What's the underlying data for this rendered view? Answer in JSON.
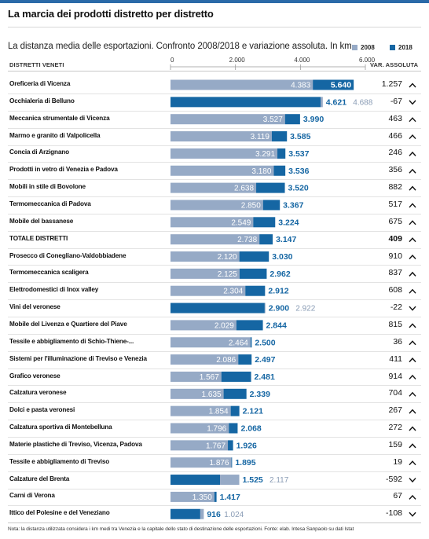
{
  "title": "La marcia dei prodotti distretto per distretto",
  "subtitle": "La distanza media delle esportazioni. Confronto 2008/2018 e variazione assoluta. In km",
  "legend": {
    "y2008": "2008",
    "y2018": "2018"
  },
  "col_label_left": "DISTRETTI VENETI",
  "col_label_right": "VAR. ASSOLUTA",
  "footnote": "Nota: la distanza utilizzata considera i km medi tra Venezia e la capitale dello stato di destinazione delle esportazioni. Fonte: elab. Intesa Sanpaolo su dati Istat",
  "colors": {
    "c2008": "#96aac6",
    "c2018": "#1566a3",
    "text2018": "#1566a3",
    "text2008": "#8a9cb5"
  },
  "chart_data": {
    "type": "bar",
    "xlim": [
      0,
      6000
    ],
    "xticks": [
      "0",
      "2.000",
      "4.000",
      "6.000"
    ],
    "xtick_values": [
      0,
      2000,
      4000,
      6000
    ],
    "categories": [
      "Oreficeria di Vicenza",
      "Occhialeria di Belluno",
      "Meccanica strumentale di Vicenza",
      "Marmo e granito di Valpolicella",
      "Concia di Arzignano",
      "Prodotti in vetro di Venezia e Padova",
      "Mobili in stile di Bovolone",
      "Termomeccanica di Padova",
      "Mobile del bassanese",
      "TOTALE DISTRETTI",
      "Prosecco di Conegliano-Valdobbiadene",
      "Termomeccanica scaligera",
      "Elettrodomestici di Inox valley",
      "Vini del veronese",
      "Mobile del Livenza e Quartiere del Piave",
      "Tessile e abbigliamento di Schio-Thiene-...",
      "Sistemi per l'illuminazione di Treviso e Venezia",
      "Grafico veronese",
      "Calzatura veronese",
      "Dolci e pasta veronesi",
      "Calzatura sportiva di Montebelluna",
      "Materie plastiche di Treviso, Vicenza, Padova",
      "Tessile e abbigliamento di Treviso",
      "Calzature del Brenta",
      "Carni di Verona",
      "Ittico del Polesine e del Veneziano"
    ],
    "series": [
      {
        "name": "2008",
        "values": [
          4383,
          4688,
          3527,
          3119,
          3291,
          3180,
          2638,
          2850,
          2549,
          2738,
          2120,
          2125,
          2304,
          2922,
          2029,
          2464,
          2086,
          1567,
          1635,
          1854,
          1796,
          1767,
          1876,
          2117,
          1350,
          1024
        ]
      },
      {
        "name": "2018",
        "values": [
          5640,
          4621,
          3990,
          3585,
          3537,
          3536,
          3520,
          3367,
          3224,
          3147,
          3030,
          2962,
          2912,
          2900,
          2844,
          2500,
          2497,
          2481,
          2339,
          2121,
          2068,
          1926,
          1895,
          1525,
          1417,
          916
        ]
      }
    ],
    "labels_2008": [
      "4.383",
      "4.688",
      "3.527",
      "3.119",
      "3.291",
      "3.180",
      "2.638",
      "2.850",
      "2.549",
      "2.738",
      "2.120",
      "2.125",
      "2.304",
      "2.922",
      "2.029",
      "2.464",
      "2.086",
      "1.567",
      "1.635",
      "1.854",
      "1.796",
      "1.767",
      "1.876",
      "2.117",
      "1.350",
      "1.024"
    ],
    "labels_2018": [
      "5.640",
      "4.621",
      "3.990",
      "3.585",
      "3.537",
      "3.536",
      "3.520",
      "3.367",
      "3.224",
      "3.147",
      "3.030",
      "2.962",
      "2.912",
      "2.900",
      "2.844",
      "2.500",
      "2.497",
      "2.481",
      "2.339",
      "2.121",
      "2.068",
      "1.926",
      "1.895",
      "1.525",
      "1.417",
      "916"
    ],
    "variation_labels": [
      "1.257",
      "-67",
      "463",
      "466",
      "246",
      "356",
      "882",
      "517",
      "675",
      "409",
      "910",
      "837",
      "608",
      "-22",
      "815",
      "36",
      "411",
      "914",
      "704",
      "267",
      "272",
      "159",
      "19",
      "-592",
      "67",
      "-108"
    ],
    "variation_direction": [
      "up",
      "down",
      "up",
      "up",
      "up",
      "up",
      "up",
      "up",
      "up",
      "up",
      "up",
      "up",
      "up",
      "down",
      "up",
      "up",
      "up",
      "up",
      "up",
      "up",
      "up",
      "up",
      "up",
      "down",
      "up",
      "down"
    ],
    "highlight_index": 9
  }
}
